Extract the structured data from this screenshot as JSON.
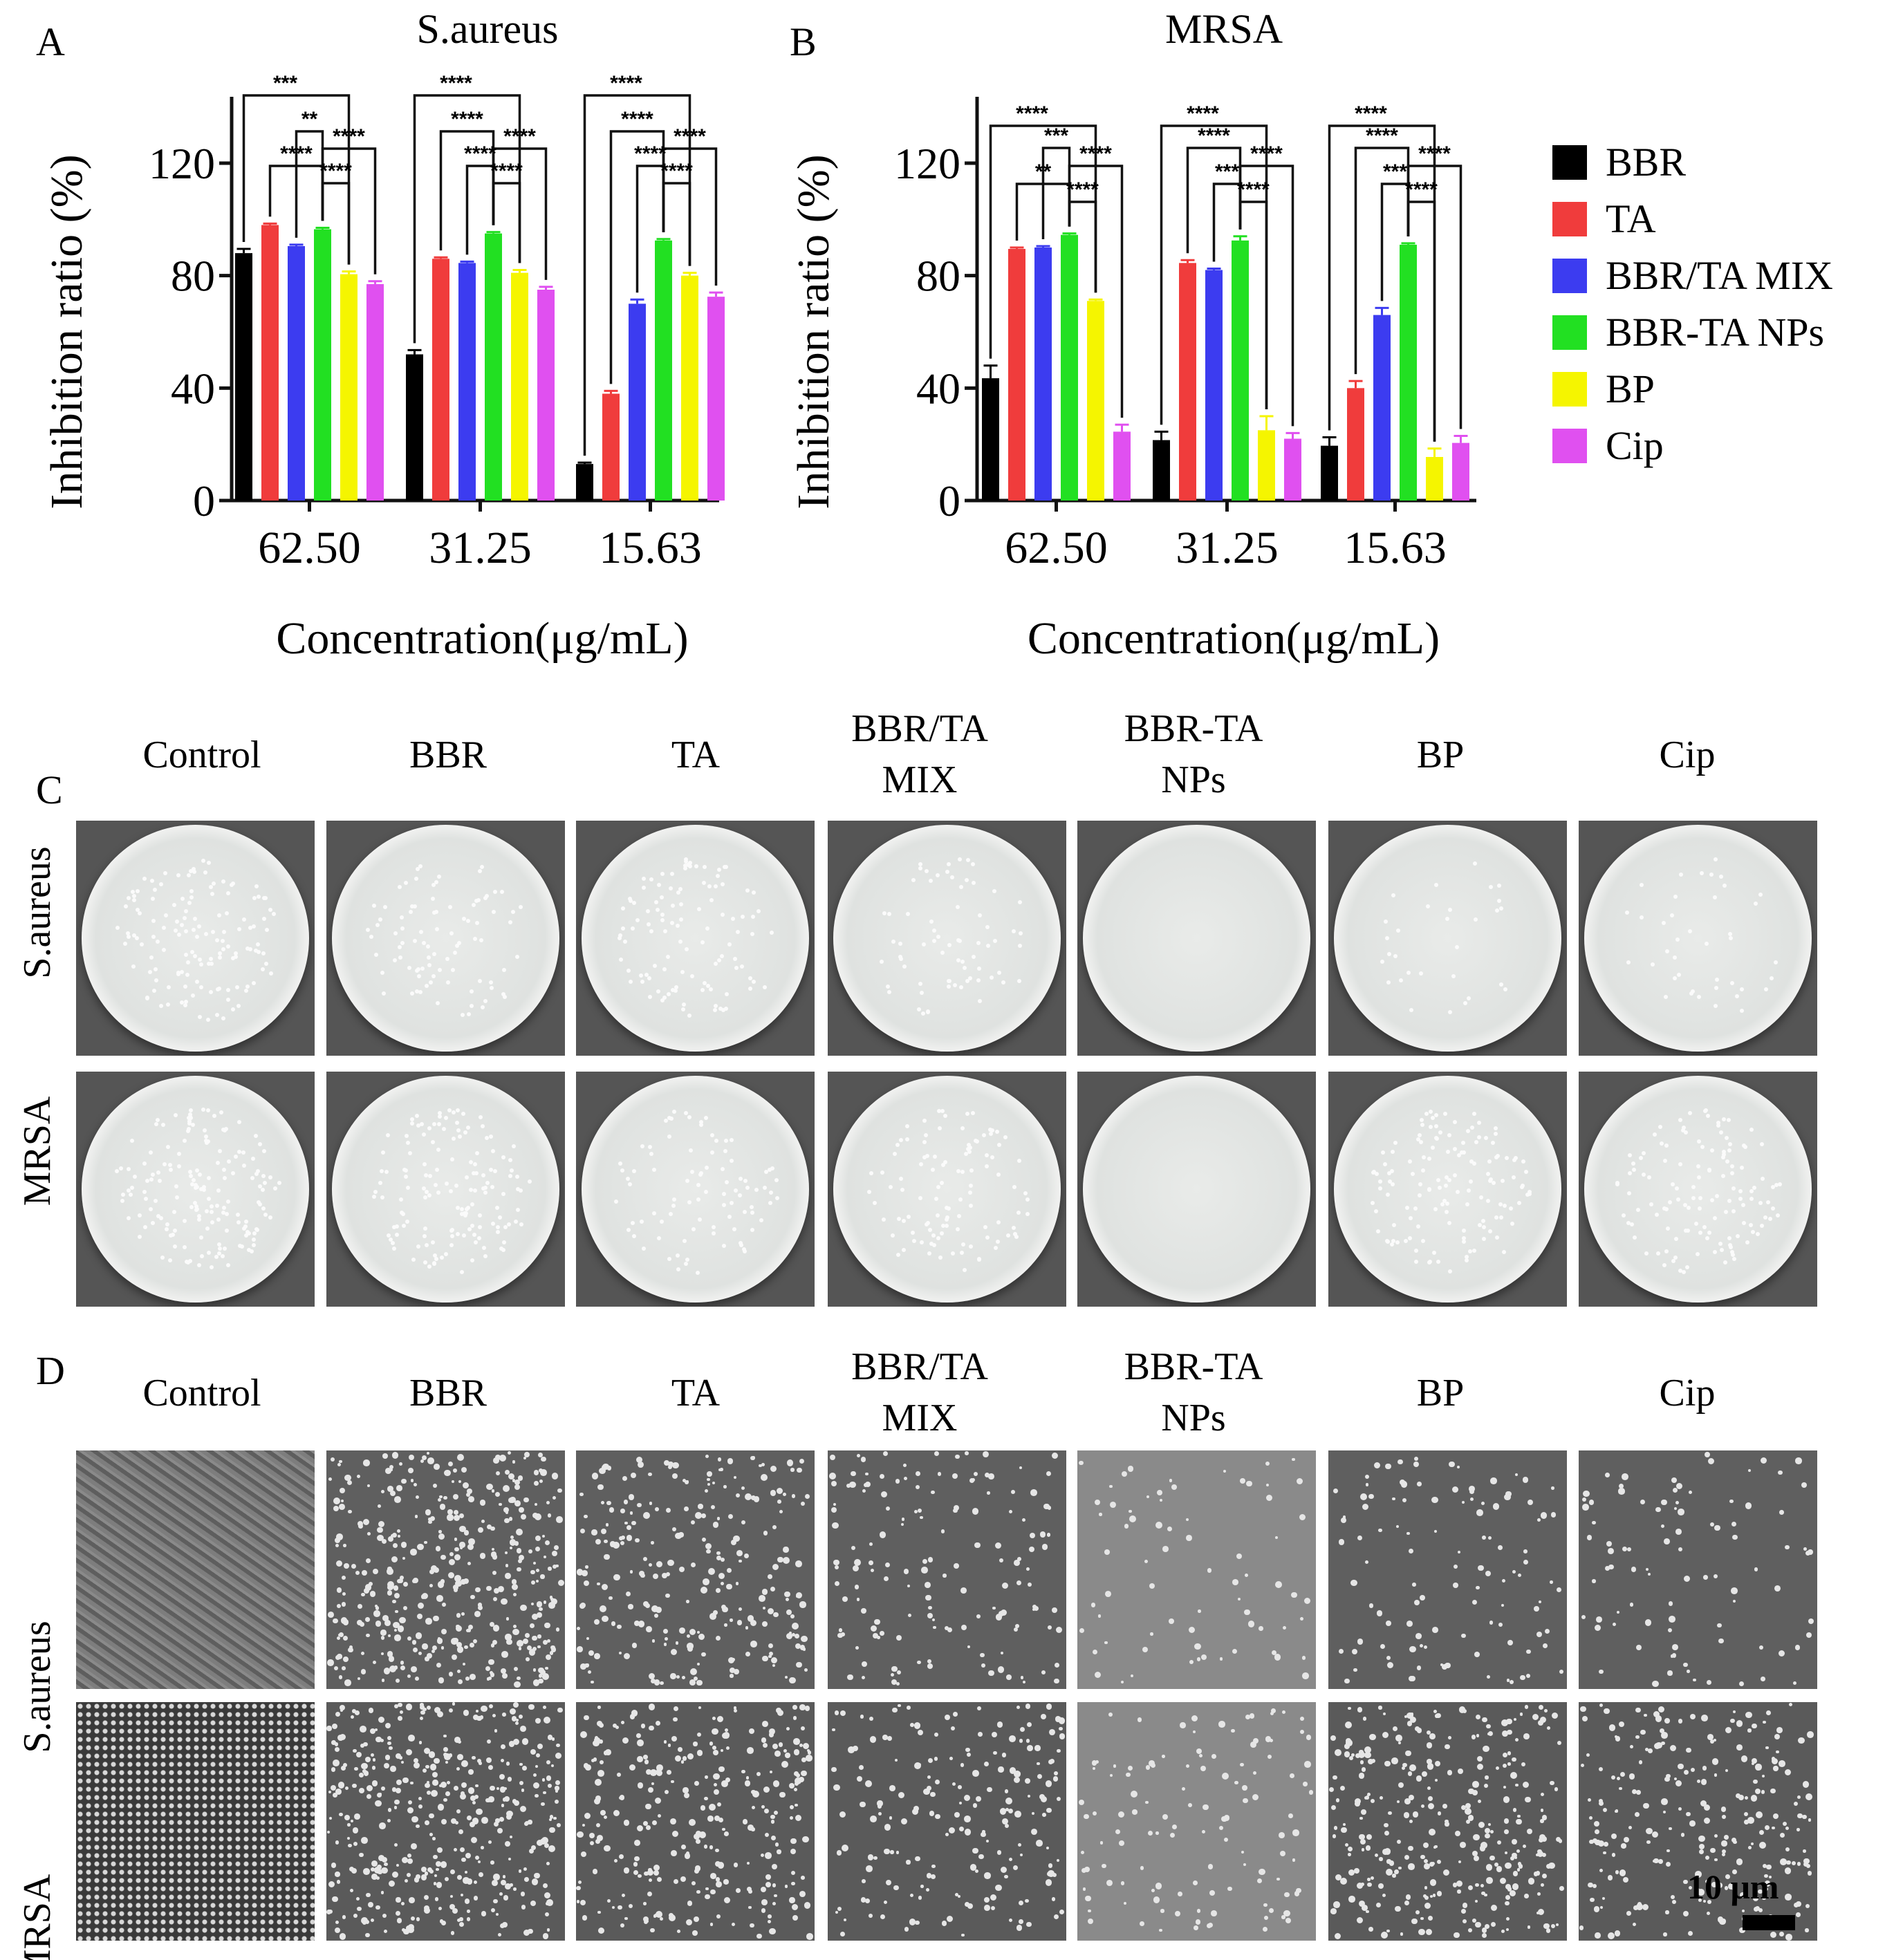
{
  "panel_A": {
    "letter": "A",
    "title": "S.aureus"
  },
  "panel_B": {
    "letter": "B",
    "title": "MRSA"
  },
  "panel_C": {
    "letter": "C"
  },
  "panel_D": {
    "letter": "D"
  },
  "legend": [
    {
      "name": "BBR",
      "color": "#000000"
    },
    {
      "name": "TA",
      "color": "#f03c3c"
    },
    {
      "name": "BBR/TA MIX",
      "color": "#3c3cf0"
    },
    {
      "name": "BBR-TA NPs",
      "color": "#22e022"
    },
    {
      "name": "BP",
      "color": "#f5f500"
    },
    {
      "name": "Cip",
      "color": "#e050f0"
    }
  ],
  "group_labels": [
    "Control",
    "BBR",
    "TA",
    "BBR/TA MIX",
    "BBR-TA NPs",
    "BP",
    "Cip"
  ],
  "group_labels_split": [
    [
      "Control"
    ],
    [
      "BBR"
    ],
    [
      "TA"
    ],
    [
      "BBR/TA",
      "MIX"
    ],
    [
      "BBR-TA",
      "NPs"
    ],
    [
      "BP"
    ],
    [
      "Cip"
    ]
  ],
  "row_labels": [
    "S.aureus",
    "MRSA"
  ],
  "scale_bar": "10 μm",
  "chart_data": [
    {
      "type": "bar",
      "title": "S.aureus",
      "xlabel": "Concentration(μg/mL)",
      "ylabel": "Inhibition ratio (%)",
      "categories": [
        "62.50",
        "31.25",
        "15.63"
      ],
      "yticks": [
        0,
        40,
        80,
        120
      ],
      "ylim": [
        0,
        140
      ],
      "series": [
        {
          "name": "BBR",
          "values": [
            88,
            52,
            13
          ],
          "errors": [
            1.5,
            1.5,
            0.5
          ]
        },
        {
          "name": "TA",
          "values": [
            98,
            86,
            38
          ],
          "errors": [
            0.5,
            0.5,
            1.0
          ]
        },
        {
          "name": "BBR/TA MIX",
          "values": [
            90.5,
            84.5,
            70
          ],
          "errors": [
            0.5,
            0.5,
            1.5
          ]
        },
        {
          "name": "BBR-TA NPs",
          "values": [
            96.5,
            95,
            92.5
          ],
          "errors": [
            0.5,
            0.5,
            0.5
          ]
        },
        {
          "name": "BP",
          "values": [
            80.5,
            81,
            80
          ],
          "errors": [
            1.0,
            1.0,
            1.0
          ]
        },
        {
          "name": "Cip",
          "values": [
            77,
            75,
            72.5
          ],
          "errors": [
            1.0,
            1.0,
            1.5
          ]
        }
      ],
      "significance": [
        {
          "levels": [
            {
              "from": 0,
              "to": 4,
              "label": "***"
            },
            {
              "from": 2,
              "to": 3,
              "label": "**"
            },
            {
              "from": 3,
              "to": 5,
              "label": "****"
            },
            {
              "from": 1,
              "to": 3,
              "label": "****"
            },
            {
              "from": 3,
              "to": 4,
              "label": "****"
            }
          ]
        },
        {
          "levels": [
            {
              "from": 0,
              "to": 4,
              "label": "****"
            },
            {
              "from": 1,
              "to": 3,
              "label": "****"
            },
            {
              "from": 3,
              "to": 5,
              "label": "****"
            },
            {
              "from": 2,
              "to": 3,
              "label": "****"
            },
            {
              "from": 3,
              "to": 4,
              "label": "****"
            }
          ]
        },
        {
          "levels": [
            {
              "from": 0,
              "to": 4,
              "label": "****"
            },
            {
              "from": 1,
              "to": 3,
              "label": "****"
            },
            {
              "from": 3,
              "to": 5,
              "label": "****"
            },
            {
              "from": 2,
              "to": 3,
              "label": "****"
            },
            {
              "from": 3,
              "to": 4,
              "label": "****"
            }
          ]
        }
      ]
    },
    {
      "type": "bar",
      "title": "MRSA",
      "xlabel": "Concentration(μg/mL)",
      "ylabel": "Inhibition ratio (%)",
      "categories": [
        "62.50",
        "31.25",
        "15.63"
      ],
      "yticks": [
        0,
        40,
        80,
        120
      ],
      "ylim": [
        0,
        140
      ],
      "series": [
        {
          "name": "BBR",
          "values": [
            43.5,
            21.5,
            19.5
          ],
          "errors": [
            4.5,
            3.0,
            3.0
          ]
        },
        {
          "name": "TA",
          "values": [
            89.5,
            84.5,
            40
          ],
          "errors": [
            0.5,
            1.0,
            2.5
          ]
        },
        {
          "name": "BBR/TA MIX",
          "values": [
            90,
            82,
            66
          ],
          "errors": [
            0.5,
            0.5,
            2.5
          ]
        },
        {
          "name": "BBR-TA NPs",
          "values": [
            94.5,
            92.5,
            91
          ],
          "errors": [
            0.5,
            1.5,
            0.5
          ]
        },
        {
          "name": "BP",
          "values": [
            71,
            25,
            15.5
          ],
          "errors": [
            0.5,
            5.0,
            3.0
          ]
        },
        {
          "name": "Cip",
          "values": [
            24.5,
            22,
            20.5
          ],
          "errors": [
            2.5,
            2.0,
            2.5
          ]
        }
      ],
      "significance": [
        {
          "levels": [
            {
              "from": 0,
              "to": 4,
              "label": "****"
            },
            {
              "from": 2,
              "to": 3,
              "label": "***"
            },
            {
              "from": 3,
              "to": 5,
              "label": "****"
            },
            {
              "from": 1,
              "to": 3,
              "label": "**"
            },
            {
              "from": 3,
              "to": 4,
              "label": "****"
            }
          ]
        },
        {
          "levels": [
            {
              "from": 0,
              "to": 4,
              "label": "****"
            },
            {
              "from": 1,
              "to": 3,
              "label": "****"
            },
            {
              "from": 3,
              "to": 5,
              "label": "****"
            },
            {
              "from": 2,
              "to": 3,
              "label": "***"
            },
            {
              "from": 3,
              "to": 4,
              "label": "****"
            }
          ]
        },
        {
          "levels": [
            {
              "from": 0,
              "to": 4,
              "label": "****"
            },
            {
              "from": 1,
              "to": 3,
              "label": "****"
            },
            {
              "from": 3,
              "to": 5,
              "label": "****"
            },
            {
              "from": 2,
              "to": 3,
              "label": "***"
            },
            {
              "from": 3,
              "to": 4,
              "label": "****"
            }
          ]
        }
      ]
    }
  ]
}
